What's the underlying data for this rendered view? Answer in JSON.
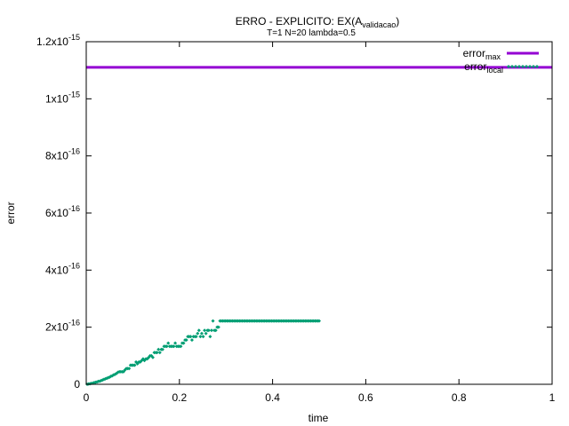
{
  "chart_data": {
    "type": "scatter",
    "title": "ERRO - EXPLICITO: EX(A",
    "title_subscript": "validacao",
    "title_suffix": ")",
    "subtitle": "T=1 N=20 lambda=0.5",
    "xlabel": "time",
    "ylabel": "error",
    "xlim": [
      0,
      1
    ],
    "ylim": [
      0,
      1.2e-15
    ],
    "x_ticks": [
      {
        "value": 0,
        "label": "0"
      },
      {
        "value": 0.2,
        "label": "0.2"
      },
      {
        "value": 0.4,
        "label": "0.4"
      },
      {
        "value": 0.6,
        "label": "0.6"
      },
      {
        "value": 0.8,
        "label": "0.8"
      },
      {
        "value": 1,
        "label": "1"
      }
    ],
    "y_ticks": [
      {
        "value": 0,
        "mant": "0",
        "exp": ""
      },
      {
        "value": 2e-16,
        "mant": "2x10",
        "exp": "-16"
      },
      {
        "value": 4e-16,
        "mant": "4x10",
        "exp": "-16"
      },
      {
        "value": 6e-16,
        "mant": "6x10",
        "exp": "-16"
      },
      {
        "value": 8e-16,
        "mant": "8x10",
        "exp": "-16"
      },
      {
        "value": 1e-15,
        "mant": "1x10",
        "exp": "-15"
      },
      {
        "value": 1.2e-15,
        "mant": "1.2x10",
        "exp": "-15"
      }
    ],
    "grid": false,
    "legend_position": "top-right",
    "series": [
      {
        "name": "error",
        "name_subscript": "max",
        "style": "line",
        "color": "#9400d3",
        "y_constant": 1.1102e-15
      },
      {
        "name": "error",
        "name_subscript": "local",
        "style": "points",
        "color": "#009e73",
        "points": [
          [
            0.002,
            0
          ],
          [
            0.005,
            1e-18
          ],
          [
            0.008,
            2e-18
          ],
          [
            0.011,
            3e-18
          ],
          [
            0.014,
            4e-18
          ],
          [
            0.017,
            6e-18
          ],
          [
            0.02,
            7e-18
          ],
          [
            0.023,
            8e-18
          ],
          [
            0.026,
            1e-17
          ],
          [
            0.029,
            1.1e-17
          ],
          [
            0.032,
            1.3e-17
          ],
          [
            0.035,
            1.5e-17
          ],
          [
            0.038,
            1.7e-17
          ],
          [
            0.041,
            1.9e-17
          ],
          [
            0.044,
            2.1e-17
          ],
          [
            0.047,
            2.3e-17
          ],
          [
            0.05,
            2.5e-17
          ],
          [
            0.053,
            2.8e-17
          ],
          [
            0.056,
            3e-17
          ],
          [
            0.059,
            3.3e-17
          ],
          [
            0.062,
            3.5e-17
          ],
          [
            0.065,
            3.8e-17
          ],
          [
            0.068,
            4.2e-17
          ],
          [
            0.071,
            4.4e-17
          ],
          [
            0.074,
            4.4e-17
          ],
          [
            0.077,
            4.4e-17
          ],
          [
            0.08,
            4.4e-17
          ],
          [
            0.083,
            5e-17
          ],
          [
            0.086,
            5.5e-17
          ],
          [
            0.089,
            5.5e-17
          ],
          [
            0.092,
            5.5e-17
          ],
          [
            0.095,
            6.7e-17
          ],
          [
            0.098,
            6.7e-17
          ],
          [
            0.101,
            6.7e-17
          ],
          [
            0.104,
            6.7e-17
          ],
          [
            0.107,
            7.8e-17
          ],
          [
            0.11,
            7.2e-17
          ],
          [
            0.113,
            7.8e-17
          ],
          [
            0.116,
            7.8e-17
          ],
          [
            0.119,
            8.3e-17
          ],
          [
            0.122,
            8.9e-17
          ],
          [
            0.125,
            8.3e-17
          ],
          [
            0.128,
            8.9e-17
          ],
          [
            0.131,
            8.9e-17
          ],
          [
            0.134,
            9.4e-17
          ],
          [
            0.137,
            1e-16
          ],
          [
            0.14,
            1e-16
          ],
          [
            0.143,
            9.4e-17
          ],
          [
            0.146,
            1.11e-16
          ],
          [
            0.149,
            1.11e-16
          ],
          [
            0.152,
            1.11e-16
          ],
          [
            0.155,
            1.22e-16
          ],
          [
            0.158,
            1.11e-16
          ],
          [
            0.161,
            1.22e-16
          ],
          [
            0.164,
            1.22e-16
          ],
          [
            0.167,
            1.33e-16
          ],
          [
            0.17,
            1.33e-16
          ],
          [
            0.173,
            1.33e-16
          ],
          [
            0.176,
            1.44e-16
          ],
          [
            0.179,
            1.33e-16
          ],
          [
            0.182,
            1.33e-16
          ],
          [
            0.185,
            1.33e-16
          ],
          [
            0.188,
            1.33e-16
          ],
          [
            0.191,
            1.44e-16
          ],
          [
            0.194,
            1.33e-16
          ],
          [
            0.197,
            1.33e-16
          ],
          [
            0.2,
            1.33e-16
          ],
          [
            0.203,
            1.33e-16
          ],
          [
            0.206,
            1.44e-16
          ],
          [
            0.209,
            1.44e-16
          ],
          [
            0.212,
            1.55e-16
          ],
          [
            0.215,
            1.55e-16
          ],
          [
            0.218,
            1.67e-16
          ],
          [
            0.221,
            1.67e-16
          ],
          [
            0.224,
            1.67e-16
          ],
          [
            0.227,
            1.55e-16
          ],
          [
            0.23,
            1.67e-16
          ],
          [
            0.233,
            1.67e-16
          ],
          [
            0.236,
            1.67e-16
          ],
          [
            0.239,
            1.78e-16
          ],
          [
            0.242,
            1.89e-16
          ],
          [
            0.245,
            1.67e-16
          ],
          [
            0.248,
            1.78e-16
          ],
          [
            0.251,
            1.67e-16
          ],
          [
            0.254,
            1.89e-16
          ],
          [
            0.257,
            1.78e-16
          ],
          [
            0.26,
            1.89e-16
          ],
          [
            0.263,
            1.89e-16
          ],
          [
            0.266,
            1.67e-16
          ],
          [
            0.269,
            1.89e-16
          ],
          [
            0.272,
            2.22e-16
          ],
          [
            0.275,
            1.89e-16
          ],
          [
            0.278,
            1.89e-16
          ],
          [
            0.281,
            2e-16
          ],
          [
            0.284,
            2e-16
          ],
          [
            0.287,
            2.22e-16
          ],
          [
            0.29,
            2.22e-16
          ],
          [
            0.293,
            2.22e-16
          ],
          [
            0.296,
            2.22e-16
          ],
          [
            0.299,
            2.22e-16
          ],
          [
            0.302,
            2.22e-16
          ],
          [
            0.305,
            2.22e-16
          ],
          [
            0.308,
            2.22e-16
          ],
          [
            0.311,
            2.22e-16
          ],
          [
            0.314,
            2.22e-16
          ],
          [
            0.317,
            2.22e-16
          ],
          [
            0.32,
            2.22e-16
          ],
          [
            0.323,
            2.22e-16
          ],
          [
            0.326,
            2.22e-16
          ],
          [
            0.329,
            2.22e-16
          ],
          [
            0.332,
            2.22e-16
          ],
          [
            0.335,
            2.22e-16
          ],
          [
            0.338,
            2.22e-16
          ],
          [
            0.341,
            2.22e-16
          ],
          [
            0.344,
            2.22e-16
          ],
          [
            0.347,
            2.22e-16
          ],
          [
            0.35,
            2.22e-16
          ],
          [
            0.353,
            2.22e-16
          ],
          [
            0.356,
            2.22e-16
          ],
          [
            0.359,
            2.22e-16
          ],
          [
            0.362,
            2.22e-16
          ],
          [
            0.365,
            2.22e-16
          ],
          [
            0.368,
            2.22e-16
          ],
          [
            0.371,
            2.22e-16
          ],
          [
            0.374,
            2.22e-16
          ],
          [
            0.377,
            2.22e-16
          ],
          [
            0.38,
            2.22e-16
          ],
          [
            0.383,
            2.22e-16
          ],
          [
            0.386,
            2.22e-16
          ],
          [
            0.389,
            2.22e-16
          ],
          [
            0.392,
            2.22e-16
          ],
          [
            0.395,
            2.22e-16
          ],
          [
            0.398,
            2.22e-16
          ],
          [
            0.401,
            2.22e-16
          ],
          [
            0.404,
            2.22e-16
          ],
          [
            0.407,
            2.22e-16
          ],
          [
            0.41,
            2.22e-16
          ],
          [
            0.413,
            2.22e-16
          ],
          [
            0.416,
            2.22e-16
          ],
          [
            0.419,
            2.22e-16
          ],
          [
            0.422,
            2.22e-16
          ],
          [
            0.425,
            2.22e-16
          ],
          [
            0.428,
            2.22e-16
          ],
          [
            0.431,
            2.22e-16
          ],
          [
            0.434,
            2.22e-16
          ],
          [
            0.437,
            2.22e-16
          ],
          [
            0.44,
            2.22e-16
          ],
          [
            0.443,
            2.22e-16
          ],
          [
            0.446,
            2.22e-16
          ],
          [
            0.449,
            2.22e-16
          ],
          [
            0.452,
            2.22e-16
          ],
          [
            0.455,
            2.22e-16
          ],
          [
            0.458,
            2.22e-16
          ],
          [
            0.461,
            2.22e-16
          ],
          [
            0.464,
            2.22e-16
          ],
          [
            0.467,
            2.22e-16
          ],
          [
            0.47,
            2.22e-16
          ],
          [
            0.473,
            2.22e-16
          ],
          [
            0.476,
            2.22e-16
          ],
          [
            0.479,
            2.22e-16
          ],
          [
            0.482,
            2.22e-16
          ],
          [
            0.485,
            2.22e-16
          ],
          [
            0.488,
            2.22e-16
          ],
          [
            0.491,
            2.22e-16
          ],
          [
            0.494,
            2.22e-16
          ],
          [
            0.497,
            2.22e-16
          ],
          [
            0.5,
            2.22e-16
          ]
        ]
      }
    ]
  }
}
